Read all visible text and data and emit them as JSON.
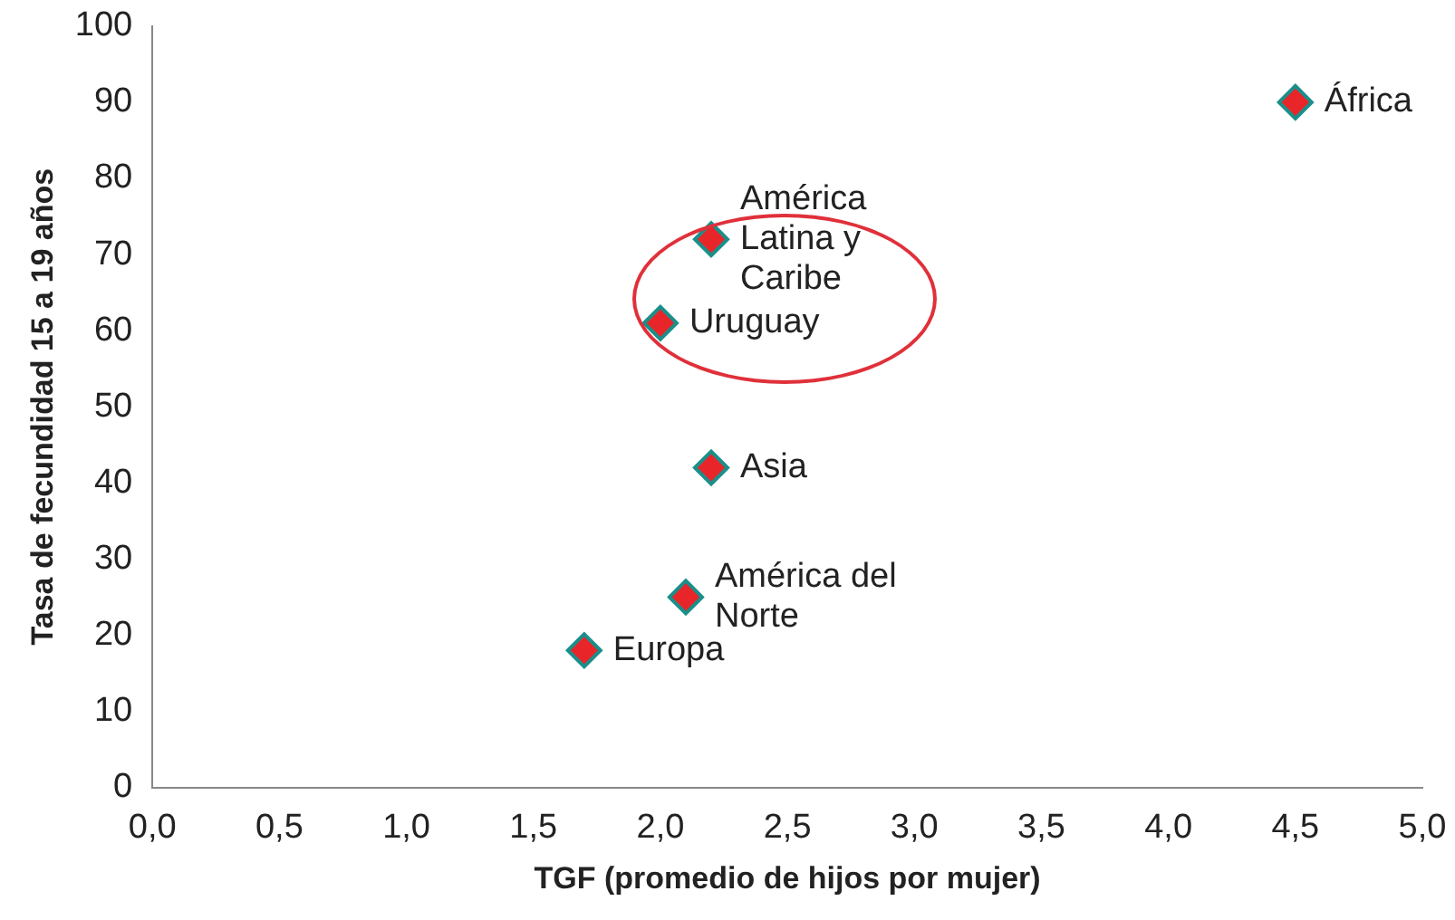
{
  "chart_data": {
    "type": "scatter",
    "xlabel": "TGF (promedio de hijos por mujer)",
    "ylabel": "Tasa de fecundidad 15 a 19 años",
    "x": [
      1.7,
      2.1,
      2.2,
      2.0,
      2.2,
      4.5
    ],
    "values": [
      18,
      25,
      42,
      61,
      72,
      90
    ],
    "color": "#e8262a",
    "marker": "diamond",
    "grid": false,
    "legend": false,
    "xlim": [
      0,
      5
    ],
    "xticks": [
      {
        "value": 0,
        "label": "0,0"
      },
      {
        "value": 0.5,
        "label": "0,5"
      },
      {
        "value": 1,
        "label": "1,0"
      },
      {
        "value": 1.5,
        "label": "1,5"
      },
      {
        "value": 2,
        "label": "2,0"
      },
      {
        "value": 2.5,
        "label": "2,5"
      },
      {
        "value": 3,
        "label": "3,0"
      },
      {
        "value": 3.5,
        "label": "3,5"
      },
      {
        "value": 4,
        "label": "4,0"
      },
      {
        "value": 4.5,
        "label": "4,5"
      },
      {
        "value": 5,
        "label": "5,0"
      }
    ],
    "ylim": [
      0,
      100
    ],
    "yticks": [
      0,
      10,
      20,
      30,
      40,
      50,
      60,
      70,
      80,
      90,
      100
    ],
    "annotations": [
      {
        "text": "Europa",
        "x": 1.7,
        "y": 18
      },
      {
        "text": "América del Norte",
        "x": 2.1,
        "y": 25
      },
      {
        "text": "Asia",
        "x": 2.2,
        "y": 42
      },
      {
        "text": "Uruguay",
        "x": 2.0,
        "y": 61
      },
      {
        "text": "América Latina y Caribe",
        "x": 2.2,
        "y": 72
      },
      {
        "text": "África",
        "x": 4.5,
        "y": 90
      }
    ]
  }
}
